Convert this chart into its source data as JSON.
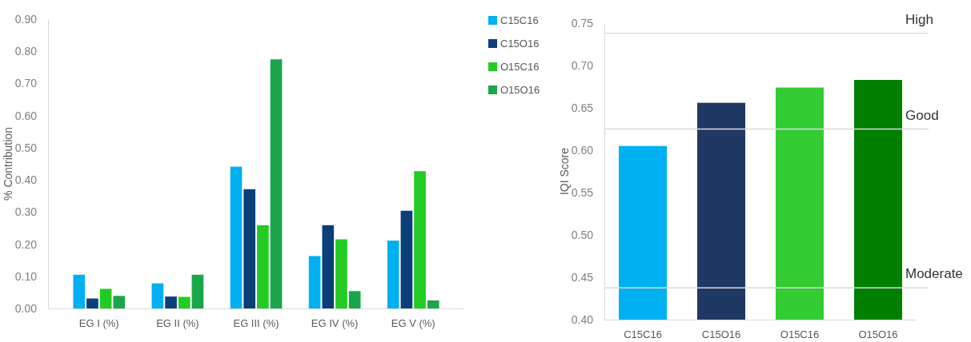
{
  "chart_data": [
    {
      "type": "bar",
      "ylabel": "% Contribution",
      "categories": [
        "EG I (%)",
        "EG II (%)",
        "EG III (%)",
        "EG IV (%)",
        "EG V (%)"
      ],
      "ylim": [
        0,
        0.9
      ],
      "yticks": [
        {
          "value": 0,
          "label": "0.00"
        },
        {
          "value": 0.1,
          "label": "0.10"
        },
        {
          "value": 0.2,
          "label": "0.20"
        },
        {
          "value": 0.3,
          "label": "0.30"
        },
        {
          "value": 0.4,
          "label": "0.40"
        },
        {
          "value": 0.5,
          "label": "0.50"
        },
        {
          "value": 0.6,
          "label": "0.60"
        },
        {
          "value": 0.7,
          "label": "0.70"
        },
        {
          "value": 0.8,
          "label": "0.80"
        },
        {
          "value": 0.9,
          "label": "0.90"
        }
      ],
      "legend": "top right",
      "series": [
        {
          "name": "C15C16",
          "color": "#00b0f0",
          "values": [
            0.105,
            0.078,
            0.441,
            0.163,
            0.211
          ]
        },
        {
          "name": "C15O16",
          "color": "#0b3f7a",
          "values": [
            0.031,
            0.037,
            0.371,
            0.259,
            0.304
          ]
        },
        {
          "name": "O15C16",
          "color": "#22cc22",
          "values": [
            0.061,
            0.036,
            0.259,
            0.215,
            0.427
          ]
        },
        {
          "name": "O15O16",
          "color": "#1aa64a",
          "values": [
            0.039,
            0.105,
            0.775,
            0.054,
            0.025
          ]
        }
      ]
    },
    {
      "type": "bar",
      "ylabel": "IQI Score",
      "categories": [
        "C15C16",
        "C15O16",
        "O15C16",
        "O15O16"
      ],
      "values": [
        0.605,
        0.656,
        0.674,
        0.683
      ],
      "colors": [
        "#00b0f0",
        "#203864",
        "#33cc33",
        "#008000"
      ],
      "ylim": [
        0.4,
        0.75
      ],
      "yticks": [
        {
          "value": 0.4,
          "label": "0.40"
        },
        {
          "value": 0.45,
          "label": "0.45"
        },
        {
          "value": 0.5,
          "label": "0.50"
        },
        {
          "value": 0.55,
          "label": "0.55"
        },
        {
          "value": 0.6,
          "label": "0.60"
        },
        {
          "value": 0.65,
          "label": "0.65"
        },
        {
          "value": 0.7,
          "label": "0.70"
        },
        {
          "value": 0.75,
          "label": "0.75"
        }
      ],
      "ref_lines": [
        {
          "axis": "y",
          "value": 0.738,
          "label": "High"
        },
        {
          "axis": "y",
          "value": 0.625,
          "label": "Good"
        },
        {
          "axis": "y",
          "value": 0.4375,
          "label": "Moderate"
        }
      ]
    }
  ]
}
